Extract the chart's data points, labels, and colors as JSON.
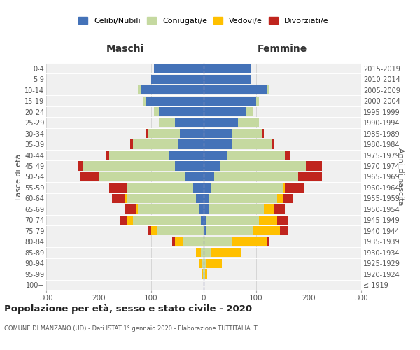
{
  "age_groups": [
    "100+",
    "95-99",
    "90-94",
    "85-89",
    "80-84",
    "75-79",
    "70-74",
    "65-69",
    "60-64",
    "55-59",
    "50-54",
    "45-49",
    "40-44",
    "35-39",
    "30-34",
    "25-29",
    "20-24",
    "15-19",
    "10-14",
    "5-9",
    "0-4"
  ],
  "birth_years": [
    "≤ 1919",
    "1920-1924",
    "1925-1929",
    "1930-1934",
    "1935-1939",
    "1940-1944",
    "1945-1949",
    "1950-1954",
    "1955-1959",
    "1960-1964",
    "1965-1969",
    "1970-1974",
    "1975-1979",
    "1980-1984",
    "1985-1989",
    "1990-1994",
    "1995-1999",
    "2000-2004",
    "2005-2009",
    "2010-2014",
    "2015-2019"
  ],
  "male": {
    "celibi": [
      0,
      0,
      0,
      0,
      0,
      0,
      5,
      10,
      15,
      20,
      35,
      55,
      65,
      50,
      45,
      55,
      85,
      110,
      120,
      100,
      95
    ],
    "coniugati": [
      0,
      2,
      3,
      5,
      40,
      90,
      130,
      115,
      130,
      125,
      165,
      175,
      115,
      85,
      60,
      30,
      10,
      5,
      5,
      0,
      0
    ],
    "vedovi": [
      0,
      2,
      5,
      10,
      15,
      10,
      10,
      5,
      5,
      0,
      0,
      0,
      0,
      0,
      0,
      0,
      0,
      0,
      0,
      0,
      0
    ],
    "divorziati": [
      0,
      0,
      0,
      0,
      5,
      5,
      15,
      20,
      25,
      35,
      35,
      10,
      5,
      5,
      5,
      0,
      0,
      0,
      0,
      0,
      0
    ]
  },
  "female": {
    "nubili": [
      0,
      0,
      0,
      0,
      0,
      5,
      5,
      10,
      10,
      15,
      20,
      30,
      45,
      55,
      55,
      65,
      80,
      100,
      120,
      90,
      90
    ],
    "coniugate": [
      0,
      2,
      5,
      15,
      55,
      90,
      100,
      105,
      130,
      135,
      160,
      165,
      110,
      75,
      55,
      40,
      15,
      5,
      5,
      0,
      0
    ],
    "vedove": [
      0,
      5,
      30,
      55,
      65,
      50,
      35,
      20,
      10,
      5,
      0,
      0,
      0,
      0,
      0,
      0,
      0,
      0,
      0,
      0,
      0
    ],
    "divorziate": [
      0,
      0,
      0,
      0,
      5,
      15,
      20,
      20,
      20,
      35,
      45,
      30,
      10,
      5,
      5,
      0,
      0,
      0,
      0,
      0,
      0
    ]
  },
  "colors": {
    "celibi": "#4472b8",
    "coniugati": "#c5d9a0",
    "vedovi": "#ffc000",
    "divorziati": "#c0251e"
  },
  "title": "Popolazione per età, sesso e stato civile - 2020",
  "subtitle": "COMUNE DI MANZANO (UD) - Dati ISTAT 1° gennaio 2020 - Elaborazione TUTTITALIA.IT",
  "xlabel_left": "Maschi",
  "xlabel_right": "Femmine",
  "ylabel_left": "Fasce di età",
  "ylabel_right": "Anni di nascita",
  "xlim": 300,
  "legend_labels": [
    "Celibi/Nubili",
    "Coniugati/e",
    "Vedovi/e",
    "Divorziati/e"
  ],
  "background_color": "#ffffff"
}
